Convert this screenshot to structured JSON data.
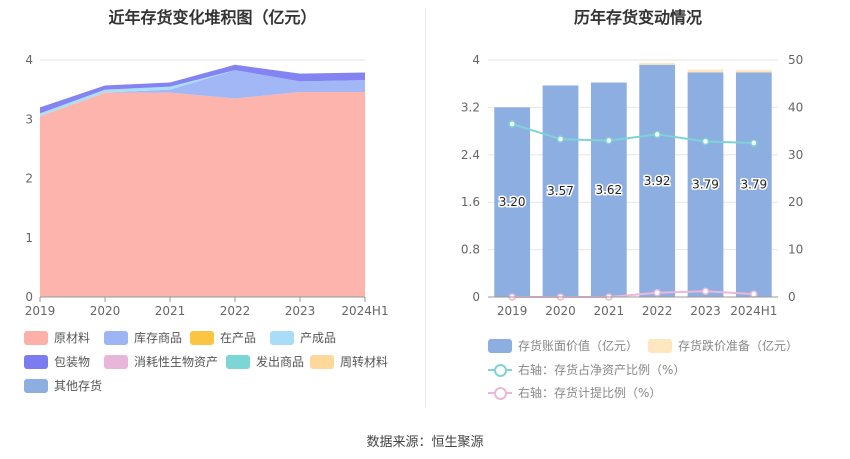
{
  "source_label": "数据来源：恒生聚源",
  "chart_data": [
    {
      "type": "area",
      "stacked": true,
      "title": "近年存货变化堆积图（亿元）",
      "categories": [
        "2019",
        "2020",
        "2021",
        "2022",
        "2023",
        "2024H1"
      ],
      "ylim": [
        0,
        4
      ],
      "yticks": [
        0,
        1,
        2,
        3,
        4
      ],
      "grid": true,
      "legend_position": "bottom",
      "series": [
        {
          "name": "原材料",
          "color": "#fcb0a8",
          "values": [
            3.05,
            3.45,
            3.45,
            3.35,
            3.46,
            3.46
          ]
        },
        {
          "name": "库存商品",
          "color": "#9db4f5",
          "values": [
            0.0,
            0.0,
            0.05,
            0.48,
            0.18,
            0.2
          ]
        },
        {
          "name": "在产品",
          "color": "#fbc442",
          "values": [
            0,
            0,
            0,
            0,
            0,
            0
          ]
        },
        {
          "name": "产成品",
          "color": "#a8dcf8",
          "values": [
            0.05,
            0.05,
            0.05,
            0.0,
            0.0,
            0.0
          ]
        },
        {
          "name": "包装物",
          "color": "#7c7cf0",
          "values": [
            0.1,
            0.07,
            0.07,
            0.09,
            0.13,
            0.13
          ]
        },
        {
          "name": "消耗性生物资产",
          "color": "#e8b6d8",
          "values": [
            0,
            0,
            0,
            0,
            0,
            0
          ]
        },
        {
          "name": "发出商品",
          "color": "#7dd6d6",
          "values": [
            0,
            0,
            0,
            0,
            0,
            0
          ]
        },
        {
          "name": "周转材料",
          "color": "#fdd89a",
          "values": [
            0,
            0,
            0,
            0,
            0,
            0
          ]
        },
        {
          "name": "其他存货",
          "color": "#8daee0",
          "values": [
            0,
            0,
            0,
            0,
            0,
            0
          ]
        }
      ]
    },
    {
      "type": "bar",
      "stacked": true,
      "title": "历年存货变动情况",
      "categories": [
        "2019",
        "2020",
        "2021",
        "2022",
        "2023",
        "2024H1"
      ],
      "ylim": [
        0,
        4
      ],
      "yticks": [
        0,
        0.8,
        1.6,
        2.4,
        3.2,
        4
      ],
      "ytick_labels": [
        "0",
        "0.8",
        "1.6",
        "2.4",
        "3.2",
        "4"
      ],
      "y2lim": [
        0,
        50
      ],
      "y2ticks": [
        0,
        10,
        20,
        30,
        40,
        50
      ],
      "grid": true,
      "legend_position": "bottom",
      "series": [
        {
          "name": "存货账面价值（亿元）",
          "color": "#8daee0",
          "values": [
            3.2,
            3.57,
            3.62,
            3.92,
            3.79,
            3.79
          ],
          "labels": [
            "3.20",
            "3.57",
            "3.62",
            "3.92",
            "3.79",
            "3.79"
          ]
        },
        {
          "name": "存货跌价准备（亿元）",
          "color": "#fde6c0",
          "values": [
            0.0,
            0.0,
            0.0,
            0.03,
            0.05,
            0.04
          ]
        }
      ],
      "lines": [
        {
          "name": "右轴：存货占净资产比例（%）",
          "color": "#7fd3d6",
          "values": [
            36.5,
            33.3,
            33.0,
            34.3,
            32.8,
            32.5
          ]
        },
        {
          "name": "右轴：存货计提比例（%）",
          "color": "#ecb8d8",
          "values": [
            0.0,
            0.0,
            0.0,
            0.9,
            1.2,
            0.6
          ]
        }
      ]
    }
  ]
}
